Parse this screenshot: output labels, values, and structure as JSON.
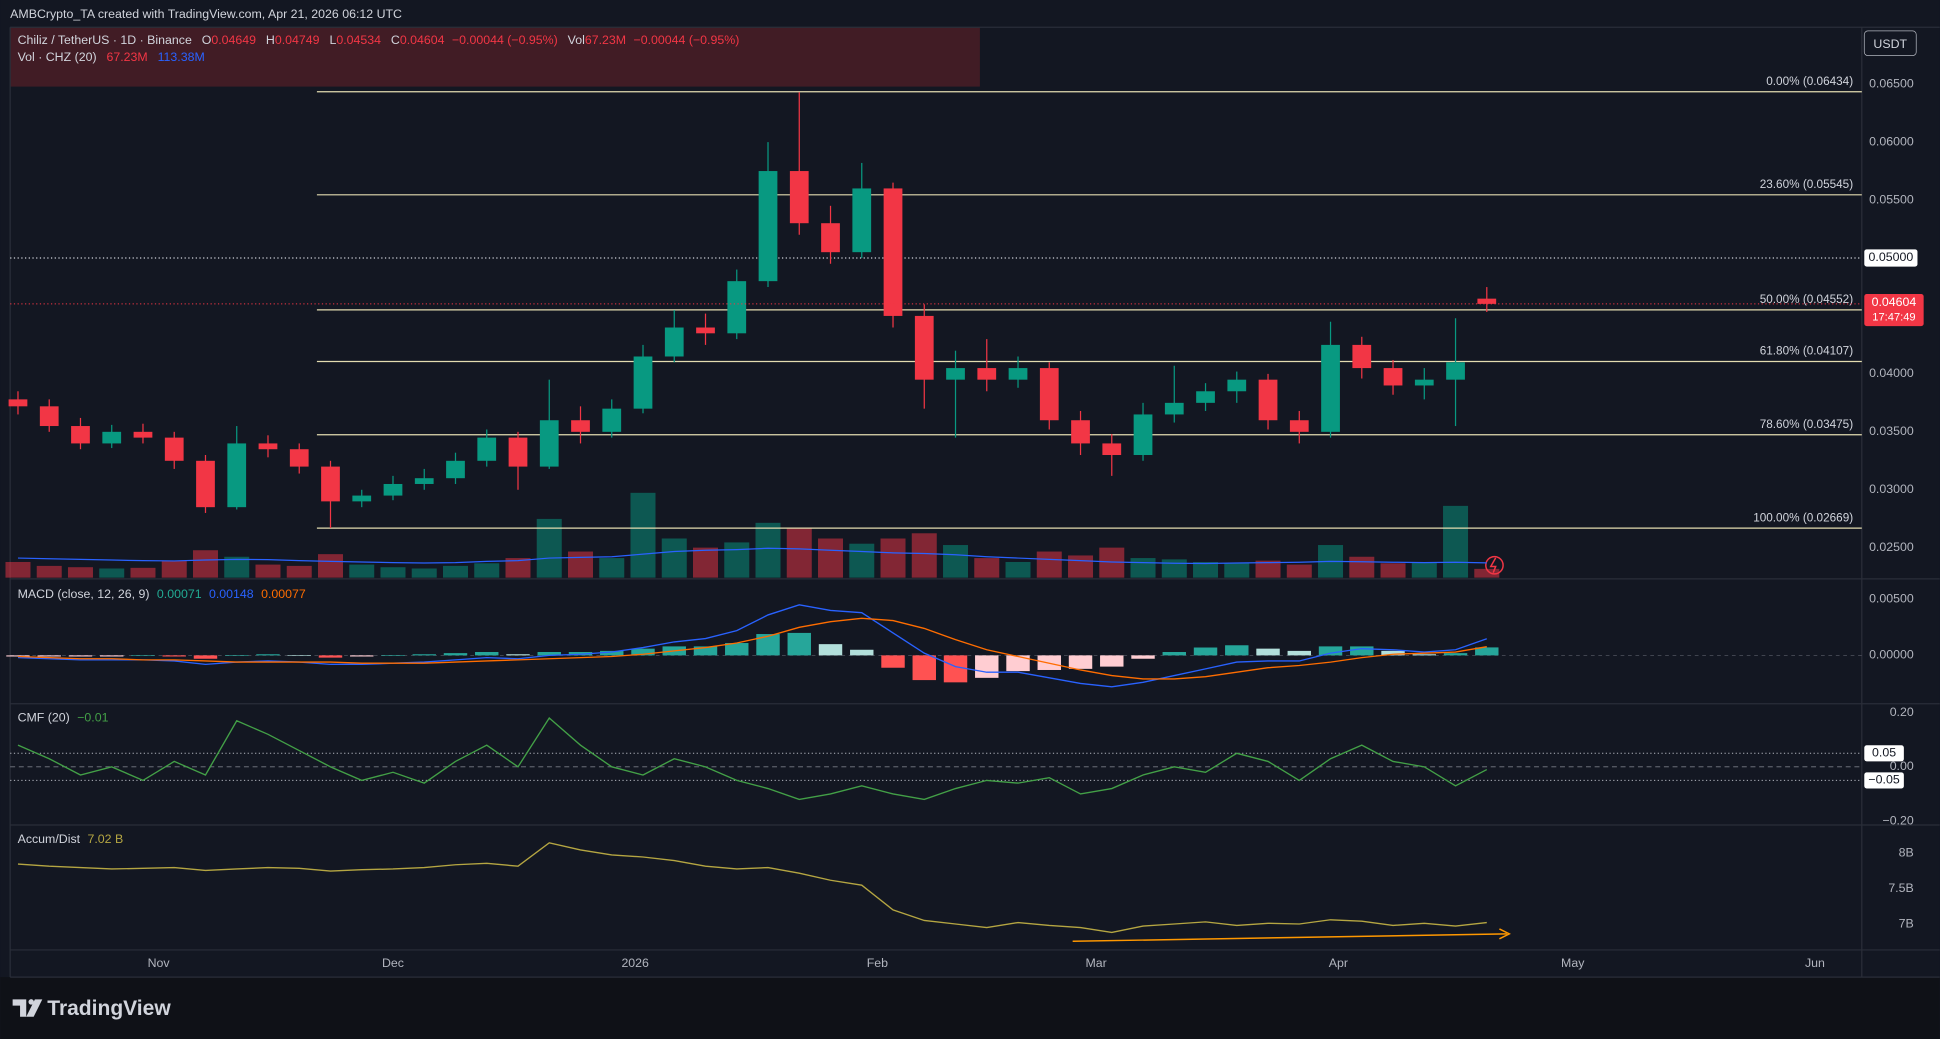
{
  "header": {
    "credit": "AMBCrypto_TA created with TradingView.com, Apr 21, 2026 06:12 UTC",
    "currency": "USDT"
  },
  "legend": {
    "symbol": "Chiliz / TetherUS · 1D · Binance",
    "ohlc": [
      {
        "key": "O",
        "value": "0.04649"
      },
      {
        "key": "H",
        "value": "0.04749"
      },
      {
        "key": "L",
        "value": "0.04534"
      },
      {
        "key": "C",
        "value": "0.04604"
      }
    ],
    "change": "−0.00044 (−0.95%)",
    "vol_key": "Vol",
    "vol_value": "67.23M",
    "vol_change": "−0.00044 (−0.95%)"
  },
  "chart_data": [
    {
      "type": "candlestick",
      "x": [
        2,
        6,
        10,
        14,
        18,
        22,
        26,
        30,
        34,
        38,
        42,
        46,
        50,
        54,
        58,
        62,
        66,
        70,
        74,
        78,
        82,
        86,
        90,
        94,
        98,
        102,
        106,
        110,
        114,
        118,
        122,
        126,
        130,
        134,
        138,
        142,
        146,
        150,
        154,
        158,
        162,
        166,
        170,
        174,
        178,
        182,
        186,
        190
      ],
      "xlim": [
        1,
        238
      ],
      "xticks": [
        {
          "value": 20,
          "label": "Nov"
        },
        {
          "value": 50,
          "label": "Dec"
        },
        {
          "value": 81,
          "label": "2026"
        },
        {
          "value": 112,
          "label": "Feb"
        },
        {
          "value": 140,
          "label": "Mar"
        },
        {
          "value": 171,
          "label": "Apr"
        },
        {
          "value": 201,
          "label": "May"
        },
        {
          "value": 232,
          "label": "Jun"
        }
      ],
      "open": [
        0.0378,
        0.0372,
        0.0355,
        0.034,
        0.035,
        0.0345,
        0.0325,
        0.0285,
        0.034,
        0.0335,
        0.032,
        0.029,
        0.0295,
        0.0305,
        0.031,
        0.0325,
        0.0345,
        0.032,
        0.036,
        0.035,
        0.037,
        0.0415,
        0.044,
        0.0435,
        0.048,
        0.0575,
        0.053,
        0.0505,
        0.056,
        0.045,
        0.0395,
        0.0405,
        0.0395,
        0.0405,
        0.036,
        0.034,
        0.033,
        0.0365,
        0.0375,
        0.0385,
        0.0395,
        0.036,
        0.035,
        0.0425,
        0.0405,
        0.039,
        0.0395,
        0.04649
      ],
      "high": [
        0.0385,
        0.0378,
        0.0362,
        0.0356,
        0.0357,
        0.035,
        0.033,
        0.0355,
        0.0347,
        0.034,
        0.0325,
        0.03,
        0.0312,
        0.0318,
        0.0332,
        0.0352,
        0.035,
        0.0395,
        0.0372,
        0.0378,
        0.0425,
        0.0455,
        0.0452,
        0.049,
        0.06,
        0.0643,
        0.0545,
        0.0582,
        0.0565,
        0.046,
        0.042,
        0.043,
        0.0415,
        0.041,
        0.0368,
        0.0348,
        0.0375,
        0.0407,
        0.0392,
        0.0402,
        0.04,
        0.0368,
        0.0445,
        0.0432,
        0.0412,
        0.0405,
        0.0448,
        0.04749
      ],
      "low": [
        0.0365,
        0.035,
        0.0335,
        0.0336,
        0.034,
        0.0318,
        0.028,
        0.0283,
        0.0328,
        0.0314,
        0.0267,
        0.0285,
        0.0291,
        0.03,
        0.0305,
        0.032,
        0.03,
        0.0318,
        0.034,
        0.0345,
        0.0366,
        0.041,
        0.0425,
        0.043,
        0.0475,
        0.052,
        0.0495,
        0.05,
        0.044,
        0.037,
        0.0345,
        0.0385,
        0.0388,
        0.0352,
        0.033,
        0.0312,
        0.0325,
        0.0358,
        0.0368,
        0.0375,
        0.0352,
        0.034,
        0.0345,
        0.0396,
        0.0382,
        0.0378,
        0.0355,
        0.04534
      ],
      "close": [
        0.0372,
        0.0355,
        0.034,
        0.035,
        0.0345,
        0.0325,
        0.0285,
        0.034,
        0.0335,
        0.032,
        0.029,
        0.0295,
        0.0305,
        0.031,
        0.0325,
        0.0345,
        0.032,
        0.036,
        0.035,
        0.037,
        0.0415,
        0.044,
        0.0435,
        0.048,
        0.0575,
        0.053,
        0.0505,
        0.056,
        0.045,
        0.0395,
        0.0405,
        0.0395,
        0.0405,
        0.036,
        0.034,
        0.033,
        0.0365,
        0.0375,
        0.0385,
        0.0395,
        0.036,
        0.035,
        0.0425,
        0.0405,
        0.039,
        0.0395,
        0.041,
        0.04604
      ],
      "up_color": "#089981",
      "down_color": "#f23645",
      "ylim": [
        0.02242,
        0.06991
      ],
      "yticks": [
        {
          "value": 0.065,
          "label": "0.06500"
        },
        {
          "value": 0.06,
          "label": "0.06000"
        },
        {
          "value": 0.055,
          "label": "0.05500"
        },
        {
          "value": 0.05,
          "label": "0.05000"
        },
        {
          "value": 0.045,
          "label": "0.04500"
        },
        {
          "value": 0.04,
          "label": "0.04000"
        },
        {
          "value": 0.035,
          "label": "0.03500"
        },
        {
          "value": 0.03,
          "label": "0.03000"
        },
        {
          "value": 0.025,
          "label": "0.02500"
        }
      ],
      "fib_color": "#e3dcb0",
      "fib_levels": [
        {
          "value": 0.06434,
          "label": "0.00% (0.06434)"
        },
        {
          "value": 0.05545,
          "label": "23.60% (0.05545)"
        },
        {
          "value": 0.04552,
          "label": "50.00% (0.04552)"
        },
        {
          "value": 0.04107,
          "label": "61.80% (0.04107)"
        },
        {
          "value": 0.03475,
          "label": "78.60% (0.03475)"
        },
        {
          "value": 0.02669,
          "label": "100.00% (0.02669)"
        }
      ],
      "hline": {
        "value": 0.05,
        "label": "0.05000"
      },
      "last_price": {
        "value": 0.04604,
        "label": "0.04604"
      },
      "countdown": "17:47:49",
      "volume": {
        "title": "Vol · CHZ (20)",
        "last_label": "67.23M",
        "ylim": [
          0,
          730000000
        ],
        "up_color": "rgba(8,153,129,0.5)",
        "down_color": "rgba(242,54,69,0.5)",
        "values": [
          120000000,
          90000000,
          80000000,
          70000000,
          75000000,
          130000000,
          210000000,
          160000000,
          100000000,
          90000000,
          180000000,
          100000000,
          80000000,
          70000000,
          90000000,
          110000000,
          150000000,
          450000000,
          200000000,
          150000000,
          650000000,
          300000000,
          230000000,
          270000000,
          420000000,
          380000000,
          300000000,
          260000000,
          300000000,
          340000000,
          250000000,
          150000000,
          120000000,
          200000000,
          170000000,
          230000000,
          150000000,
          140000000,
          120000000,
          110000000,
          130000000,
          100000000,
          250000000,
          160000000,
          110000000,
          120000000,
          550000000,
          67230000
        ],
        "ma_color": "#2962ff",
        "ma_label": "113.38M",
        "ma_values": [
          150000000,
          145000000,
          140000000,
          135000000,
          130000000,
          128000000,
          135000000,
          140000000,
          138000000,
          130000000,
          125000000,
          120000000,
          115000000,
          112000000,
          115000000,
          125000000,
          130000000,
          150000000,
          155000000,
          160000000,
          180000000,
          200000000,
          210000000,
          215000000,
          225000000,
          220000000,
          210000000,
          200000000,
          190000000,
          185000000,
          175000000,
          160000000,
          150000000,
          140000000,
          130000000,
          120000000,
          115000000,
          110000000,
          108000000,
          112000000,
          115000000,
          118000000,
          125000000,
          122000000,
          118000000,
          115000000,
          118000000,
          113380000
        ]
      }
    },
    {
      "type": "macd",
      "title": "MACD (close, 12, 26, 9)",
      "ylim": [
        -0.0042,
        0.0067
      ],
      "yticks": [
        {
          "value": 0.005,
          "label": "0.00500"
        },
        {
          "value": 0,
          "label": "0.00000"
        }
      ],
      "histogram": {
        "label": "0.00071",
        "label_color": "#22ab94",
        "colors": [
          "#26a69a",
          "#b2dfdb",
          "#ff5252",
          "#ffcdd2"
        ],
        "values": [
          -0.0001,
          -0.0001,
          -0.0001,
          -0.0001,
          0,
          -0.0001,
          -0.0003,
          0,
          0.0001,
          0,
          -0.0002,
          -0.0001,
          0,
          0.0001,
          0.0002,
          0.0003,
          0.0001,
          0.0003,
          0.0003,
          0.0004,
          0.0006,
          0.0008,
          0.0008,
          0.0011,
          0.0019,
          0.002,
          0.001,
          0.0005,
          -0.0011,
          -0.0022,
          -0.0024,
          -0.002,
          -0.0014,
          -0.0013,
          -0.0012,
          -0.001,
          -0.0003,
          0.0003,
          0.0007,
          0.0009,
          0.0006,
          0.0004,
          0.0008,
          0.0008,
          0.0004,
          0.0001,
          0.0002,
          0.00071
        ]
      },
      "macd": {
        "label": "0.00148",
        "color": "#2962ff",
        "values": [
          -0.0002,
          -0.0003,
          -0.0004,
          -0.0004,
          -0.0004,
          -0.0005,
          -0.0008,
          -0.0006,
          -0.0005,
          -0.0006,
          -0.0008,
          -0.0008,
          -0.0007,
          -0.0006,
          -0.0004,
          -0.0002,
          -0.0003,
          0,
          0.0001,
          0.0003,
          0.0007,
          0.0012,
          0.0015,
          0.0022,
          0.0036,
          0.0045,
          0.004,
          0.0038,
          0.002,
          0.0002,
          -0.001,
          -0.0015,
          -0.0015,
          -0.002,
          -0.0025,
          -0.0028,
          -0.0024,
          -0.0018,
          -0.0012,
          -0.0006,
          -0.0005,
          -0.0005,
          0.0002,
          0.0006,
          0.0005,
          0.0003,
          0.0005,
          0.00148
        ]
      },
      "signal": {
        "label": "0.00077",
        "color": "#ff6d00",
        "values": [
          -0.0001,
          -0.0002,
          -0.0003,
          -0.0003,
          -0.0004,
          -0.0004,
          -0.0005,
          -0.0006,
          -0.0006,
          -0.0006,
          -0.0006,
          -0.0007,
          -0.0007,
          -0.0007,
          -0.0006,
          -0.0005,
          -0.0004,
          -0.0003,
          -0.0002,
          -0.0001,
          0.0001,
          0.0004,
          0.0007,
          0.0011,
          0.0017,
          0.0025,
          0.003,
          0.0033,
          0.0031,
          0.0024,
          0.0014,
          0.0005,
          -0.0001,
          -0.0007,
          -0.0013,
          -0.0018,
          -0.0021,
          -0.0021,
          -0.0019,
          -0.0015,
          -0.0011,
          -0.0009,
          -0.0006,
          -0.0002,
          0.0001,
          0.0002,
          0.0003,
          0.00077
        ]
      }
    },
    {
      "type": "line",
      "title": "CMF (20)",
      "color": "#43a047",
      "value_label": "−0.01",
      "ylim": [
        -0.21,
        0.228
      ],
      "yticks": [
        {
          "value": 0.2,
          "label": "0.20"
        },
        {
          "value": 0,
          "label": "0.00"
        },
        {
          "value": -0.2,
          "label": "−0.20"
        }
      ],
      "levels": [
        0.05,
        {
          "value": -0.05,
          "label": "−0.05"
        }
      ],
      "values": [
        0.08,
        0.03,
        -0.03,
        0,
        -0.05,
        0.02,
        -0.03,
        0.17,
        0.12,
        0.06,
        0,
        -0.05,
        -0.02,
        -0.06,
        0.02,
        0.08,
        0,
        0.18,
        0.08,
        0,
        -0.03,
        0.03,
        0,
        -0.05,
        -0.08,
        -0.12,
        -0.1,
        -0.07,
        -0.1,
        -0.12,
        -0.08,
        -0.05,
        -0.06,
        -0.04,
        -0.1,
        -0.08,
        -0.03,
        0,
        -0.02,
        0.05,
        0.02,
        -0.05,
        0.03,
        0.08,
        0.02,
        0,
        -0.07,
        -0.01
      ]
    },
    {
      "type": "line",
      "title": "Accum/Dist",
      "color": "#b5a642",
      "value_label": "7.02 B",
      "ylim": [
        6632000000,
        8386000000
      ],
      "yticks": [
        {
          "value": 8000000000,
          "label": "8B"
        },
        {
          "value": 7500000000,
          "label": "7.5B"
        },
        {
          "value": 7000000000,
          "label": "7B"
        }
      ],
      "values": [
        7850000000,
        7820000000,
        7800000000,
        7780000000,
        7790000000,
        7800000000,
        7760000000,
        7780000000,
        7800000000,
        7790000000,
        7750000000,
        7770000000,
        7780000000,
        7800000000,
        7840000000,
        7860000000,
        7820000000,
        8150000000,
        8050000000,
        7980000000,
        7950000000,
        7900000000,
        7820000000,
        7780000000,
        7800000000,
        7720000000,
        7620000000,
        7550000000,
        7200000000,
        7050000000,
        7000000000,
        6950000000,
        7020000000,
        6980000000,
        6950000000,
        6880000000,
        6970000000,
        7000000000,
        7030000000,
        6980000000,
        7010000000,
        7000000000,
        7060000000,
        7040000000,
        6980000000,
        7010000000,
        6970000000,
        7020000000
      ]
    }
  ],
  "footer": {
    "brand": "TradingView"
  }
}
